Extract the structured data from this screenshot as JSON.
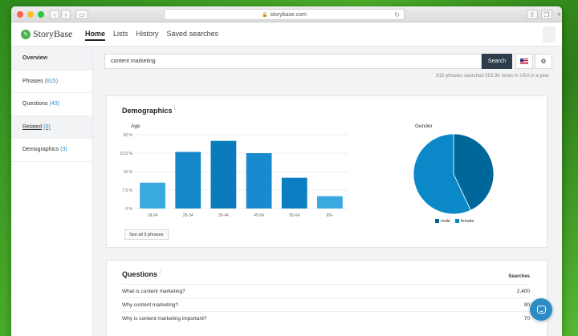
{
  "browser": {
    "url": "storybase.com"
  },
  "app": {
    "logo_text": "StoryBase",
    "nav": [
      {
        "label": "Home"
      },
      {
        "label": "Lists"
      },
      {
        "label": "History"
      },
      {
        "label": "Saved searches"
      }
    ]
  },
  "sidebar": {
    "items": [
      {
        "label": "Overview",
        "count": ""
      },
      {
        "label": "Phrases",
        "count": "(815)"
      },
      {
        "label": "Questions",
        "count": "(43)"
      },
      {
        "label": "Related",
        "count": "(0)"
      },
      {
        "label": "Demographics",
        "count": "(3)"
      }
    ]
  },
  "search": {
    "value": "content marketing",
    "button_label": "Search",
    "info": "815 phrases searched 553.9K times in USA in a year"
  },
  "demographics": {
    "title": "Demographics",
    "info_mark": "i",
    "age_label": "Age",
    "gender_label": "Gender",
    "see_all_label": "See all 3 phrases",
    "legend": [
      {
        "label": "male",
        "color": "#00679a"
      },
      {
        "label": "female",
        "color": "#0b88c8"
      }
    ]
  },
  "chart_data": [
    {
      "type": "bar",
      "title": "Age",
      "categories": [
        "18-24",
        "25-34",
        "35-44",
        "45-54",
        "55-64",
        "65+"
      ],
      "values": [
        10.5,
        23,
        27.5,
        22.5,
        12.5,
        5
      ],
      "yticks": [
        "0 %",
        "7.5 %",
        "15 %",
        "22.5 %",
        "30 %"
      ],
      "ylim": [
        0,
        30
      ],
      "grid": true,
      "colors": [
        "#3aa9e0",
        "#1588c9",
        "#0b7bbd",
        "#1a8ace",
        "#0b7fc1",
        "#3aa9e0"
      ]
    },
    {
      "type": "pie",
      "title": "Gender",
      "labels": [
        "male",
        "female"
      ],
      "values": [
        43,
        57
      ],
      "colors": [
        "#00679a",
        "#0b88c8"
      ],
      "legend": "bottom"
    }
  ],
  "questions": {
    "title": "Questions",
    "info_mark": "i",
    "column_header": "Searches",
    "rows": [
      {
        "text": "What is content marketing?",
        "searches": "2,400"
      },
      {
        "text": "Why content marketing?",
        "searches": "90"
      },
      {
        "text": "Why is content marketing important?",
        "searches": "70"
      }
    ]
  }
}
